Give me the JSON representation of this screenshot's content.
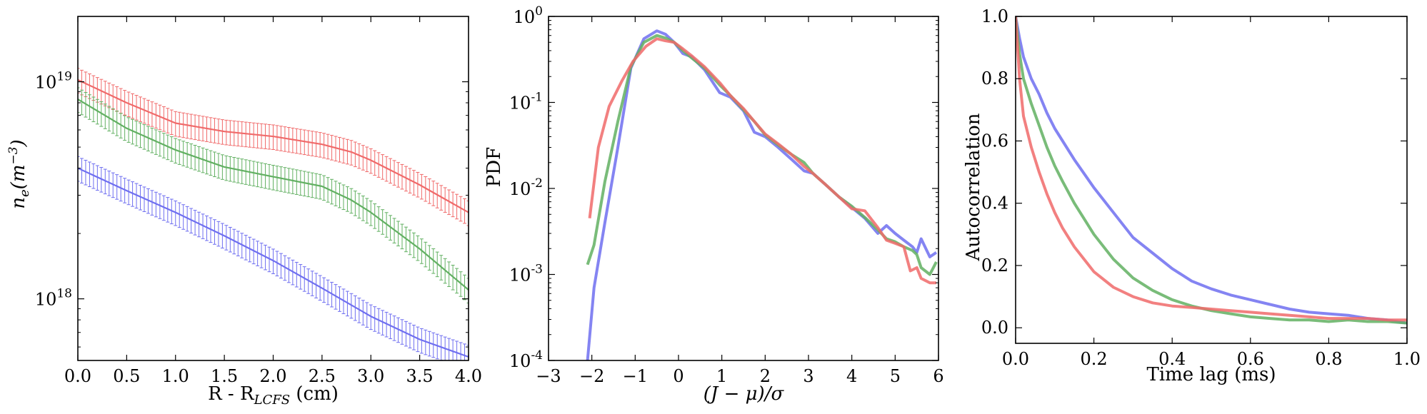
{
  "colors": {
    "blue": "#6f6ff0",
    "green": "#62b062",
    "red": "#f06a6a"
  },
  "chart_data": [
    {
      "type": "line",
      "subtype": "errorbar",
      "xlabel": "R - R",
      "xlabel_sub": "LCFS",
      "xlabel_unit": " (cm)",
      "ylabel": "n",
      "ylabel_sub": "e",
      "ylabel_unit": "(m",
      "ylabel_exp": "−3",
      "ylabel_close": ")",
      "yscale": "log",
      "xlim": [
        0,
        4.0
      ],
      "ylim": [
        5.2e+17,
        2e+19
      ],
      "xticks": [
        0,
        0.5,
        1,
        1.5,
        2,
        2.5,
        3,
        3.5,
        4
      ],
      "xtick_labels": [
        "0.0",
        "0.5",
        "1.0",
        "1.5",
        "2.0",
        "2.5",
        "3.0",
        "3.5",
        "4.0"
      ],
      "yticks": [
        1e+18,
        1e+19
      ],
      "ytick_base": "10",
      "ytick_exps": [
        "18",
        "19"
      ],
      "error_fraction": 0.13,
      "series": [
        {
          "color": "red",
          "x": [
            0,
            0.5,
            1.0,
            1.5,
            2.0,
            2.5,
            2.8,
            3.0,
            3.5,
            4.0
          ],
          "y": [
            1.02e+19,
            8e+18,
            6.45e+18,
            5.9e+18,
            5.6e+18,
            5.15e+18,
            4.75e+18,
            4.35e+18,
            3.35e+18,
            2.5e+18
          ]
        },
        {
          "color": "green",
          "x": [
            0,
            0.5,
            1.0,
            1.5,
            2.0,
            2.5,
            2.8,
            3.0,
            3.5,
            4.0
          ],
          "y": [
            8.3e+18,
            6.1e+18,
            4.85e+18,
            4.05e+18,
            3.65e+18,
            3.3e+18,
            2.85e+18,
            2.5e+18,
            1.7e+18,
            1.1e+18
          ]
        },
        {
          "color": "blue",
          "x": [
            0,
            0.5,
            1.0,
            1.5,
            2.0,
            2.5,
            3.0,
            3.5,
            4.0
          ],
          "y": [
            4e+18,
            3.15e+18,
            2.5e+18,
            1.95e+18,
            1.5e+18,
            1.12e+18,
            8.3e+17,
            6.5e+17,
            5.4e+17
          ]
        }
      ]
    },
    {
      "type": "line",
      "xlabel": "(J − μ)/σ",
      "ylabel": "PDF",
      "yscale": "log",
      "xlim": [
        -3,
        6
      ],
      "ylim": [
        0.0001,
        1
      ],
      "xticks": [
        -3,
        -2,
        -1,
        0,
        1,
        2,
        3,
        4,
        5,
        6
      ],
      "xtick_labels": [
        "−3",
        "−2",
        "−1",
        "0",
        "1",
        "2",
        "3",
        "4",
        "5",
        "6"
      ],
      "yticks": [
        0.0001,
        0.001,
        0.01,
        0.1,
        1
      ],
      "ytick_base": "10",
      "ytick_exps": [
        "-4",
        "-3",
        "-2",
        "-1",
        "0"
      ],
      "series": [
        {
          "color": "blue",
          "x": [
            -2.1,
            -1.95,
            -1.7,
            -1.4,
            -1.1,
            -0.8,
            -0.5,
            -0.3,
            -0.1,
            0.1,
            0.3,
            0.6,
            0.95,
            1.2,
            1.5,
            1.75,
            2.0,
            2.3,
            2.6,
            2.9,
            3.1,
            3.4,
            3.7,
            4.0,
            4.3,
            4.6,
            4.8,
            5.0,
            5.2,
            5.4,
            5.5,
            5.6,
            5.8,
            5.95
          ],
          "y": [
            0.0001,
            0.0007,
            0.004,
            0.03,
            0.25,
            0.55,
            0.68,
            0.62,
            0.5,
            0.37,
            0.34,
            0.24,
            0.13,
            0.115,
            0.08,
            0.045,
            0.04,
            0.03,
            0.022,
            0.016,
            0.015,
            0.011,
            0.008,
            0.006,
            0.0045,
            0.003,
            0.0037,
            0.003,
            0.0025,
            0.0021,
            0.0018,
            0.0026,
            0.0016,
            0.0018
          ]
        },
        {
          "color": "green",
          "x": [
            -2.1,
            -1.95,
            -1.7,
            -1.4,
            -1.1,
            -0.8,
            -0.5,
            -0.3,
            -0.1,
            0.1,
            0.3,
            0.6,
            0.95,
            1.2,
            1.5,
            1.75,
            2.0,
            2.3,
            2.6,
            2.9,
            3.1,
            3.4,
            3.7,
            4.0,
            4.3,
            4.6,
            4.8,
            5.0,
            5.2,
            5.4,
            5.5,
            5.6,
            5.8,
            5.95
          ],
          "y": [
            0.0013,
            0.0022,
            0.012,
            0.06,
            0.26,
            0.5,
            0.6,
            0.56,
            0.5,
            0.4,
            0.33,
            0.25,
            0.16,
            0.12,
            0.082,
            0.06,
            0.042,
            0.032,
            0.025,
            0.02,
            0.015,
            0.011,
            0.008,
            0.0062,
            0.0046,
            0.0033,
            0.0026,
            0.0024,
            0.0021,
            0.0019,
            0.0017,
            0.0012,
            0.001,
            0.0014
          ]
        },
        {
          "color": "red",
          "x": [
            -2.05,
            -1.85,
            -1.6,
            -1.3,
            -1.05,
            -0.75,
            -0.5,
            -0.3,
            -0.1,
            0.1,
            0.3,
            0.6,
            0.95,
            1.2,
            1.5,
            1.75,
            2.0,
            2.3,
            2.6,
            2.9,
            3.1,
            3.4,
            3.7,
            4.0,
            4.3,
            4.6,
            4.8,
            5.0,
            5.2,
            5.35,
            5.5,
            5.6,
            5.8,
            5.95
          ],
          "y": [
            0.0045,
            0.03,
            0.09,
            0.18,
            0.3,
            0.45,
            0.55,
            0.52,
            0.5,
            0.42,
            0.35,
            0.26,
            0.17,
            0.12,
            0.085,
            0.06,
            0.043,
            0.033,
            0.025,
            0.018,
            0.015,
            0.011,
            0.008,
            0.0058,
            0.0055,
            0.0035,
            0.0025,
            0.0023,
            0.0021,
            0.0011,
            0.0012,
            0.0009,
            0.0008,
            0.0008
          ]
        }
      ]
    },
    {
      "type": "line",
      "xlabel": "Time lag (ms)",
      "ylabel": "Autocorrelation",
      "yscale": "linear",
      "xlim": [
        0,
        1.0
      ],
      "ylim": [
        -0.05,
        1.0
      ],
      "xticks": [
        0,
        0.2,
        0.4,
        0.6,
        0.8,
        1.0
      ],
      "xtick_labels": [
        "0.0",
        "0.2",
        "0.4",
        "0.6",
        "0.8",
        "1.0"
      ],
      "yticks": [
        0,
        0.2,
        0.4,
        0.6,
        0.8,
        1.0
      ],
      "ytick_labels": [
        "0.0",
        "0.2",
        "0.4",
        "0.6",
        "0.8",
        "1.0"
      ],
      "series": [
        {
          "color": "blue",
          "x": [
            0,
            0.01,
            0.02,
            0.04,
            0.06,
            0.08,
            0.1,
            0.12,
            0.15,
            0.2,
            0.25,
            0.3,
            0.35,
            0.4,
            0.45,
            0.5,
            0.55,
            0.6,
            0.65,
            0.7,
            0.75,
            0.8,
            0.85,
            0.9,
            0.95,
            1.0
          ],
          "y": [
            1.0,
            0.93,
            0.87,
            0.8,
            0.75,
            0.69,
            0.64,
            0.6,
            0.54,
            0.45,
            0.37,
            0.29,
            0.24,
            0.19,
            0.15,
            0.125,
            0.105,
            0.09,
            0.075,
            0.06,
            0.05,
            0.045,
            0.04,
            0.03,
            0.025,
            0.015
          ]
        },
        {
          "color": "green",
          "x": [
            0,
            0.01,
            0.02,
            0.04,
            0.06,
            0.08,
            0.1,
            0.12,
            0.15,
            0.2,
            0.25,
            0.3,
            0.35,
            0.4,
            0.45,
            0.5,
            0.55,
            0.6,
            0.65,
            0.7,
            0.75,
            0.8,
            0.85,
            0.9,
            0.95,
            1.0
          ],
          "y": [
            1.0,
            0.88,
            0.8,
            0.72,
            0.65,
            0.58,
            0.52,
            0.47,
            0.4,
            0.3,
            0.22,
            0.16,
            0.12,
            0.09,
            0.07,
            0.055,
            0.045,
            0.035,
            0.03,
            0.025,
            0.025,
            0.02,
            0.025,
            0.02,
            0.02,
            0.015
          ]
        },
        {
          "color": "red",
          "x": [
            0,
            0.01,
            0.02,
            0.04,
            0.06,
            0.08,
            0.1,
            0.12,
            0.15,
            0.2,
            0.25,
            0.3,
            0.35,
            0.4,
            0.45,
            0.5,
            0.55,
            0.6,
            0.65,
            0.7,
            0.75,
            0.8,
            0.85,
            0.9,
            0.95,
            1.0
          ],
          "y": [
            1.0,
            0.8,
            0.68,
            0.58,
            0.5,
            0.43,
            0.37,
            0.32,
            0.26,
            0.18,
            0.13,
            0.1,
            0.08,
            0.07,
            0.065,
            0.06,
            0.055,
            0.05,
            0.045,
            0.04,
            0.035,
            0.03,
            0.03,
            0.03,
            0.025,
            0.025
          ]
        }
      ]
    }
  ]
}
